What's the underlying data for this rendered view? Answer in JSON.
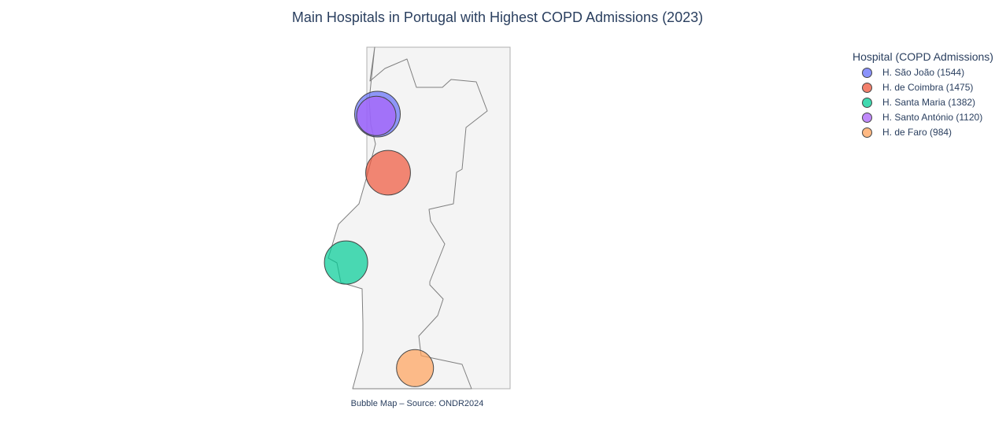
{
  "title": "Main Hospitals in Portugal with Highest COPD Admissions (2023)",
  "caption": "Bubble Map – Source: ONDR2024",
  "legend": {
    "title": "Hospital (COPD Admissions)"
  },
  "hospitals": [
    {
      "label": "H. São João (1544)",
      "name": "H. São João",
      "admissions": 1544,
      "lat": 41.18,
      "lon": -8.6,
      "color": "#636efa"
    },
    {
      "label": "H. de Coimbra (1475)",
      "name": "H. de Coimbra",
      "admissions": 1475,
      "lat": 40.22,
      "lon": -8.41,
      "color": "#ef553b"
    },
    {
      "label": "H. Santa Maria (1382)",
      "name": "H. Santa Maria",
      "admissions": 1382,
      "lat": 38.75,
      "lon": -9.16,
      "color": "#00cc96"
    },
    {
      "label": "H. Santo António (1120)",
      "name": "H. Santo António",
      "admissions": 1120,
      "lat": 41.15,
      "lon": -8.62,
      "color": "#ab63fa"
    },
    {
      "label": "H. de Faro (984)",
      "name": "H. de Faro",
      "admissions": 984,
      "lat": 37.02,
      "lon": -7.93,
      "color": "#ffa15a"
    }
  ],
  "map_style": {
    "land_color": "#f4f4f4",
    "border_color": "#7f7f7f",
    "frame_color": "#b0b0b0",
    "marker_line_color": "#444444"
  }
}
